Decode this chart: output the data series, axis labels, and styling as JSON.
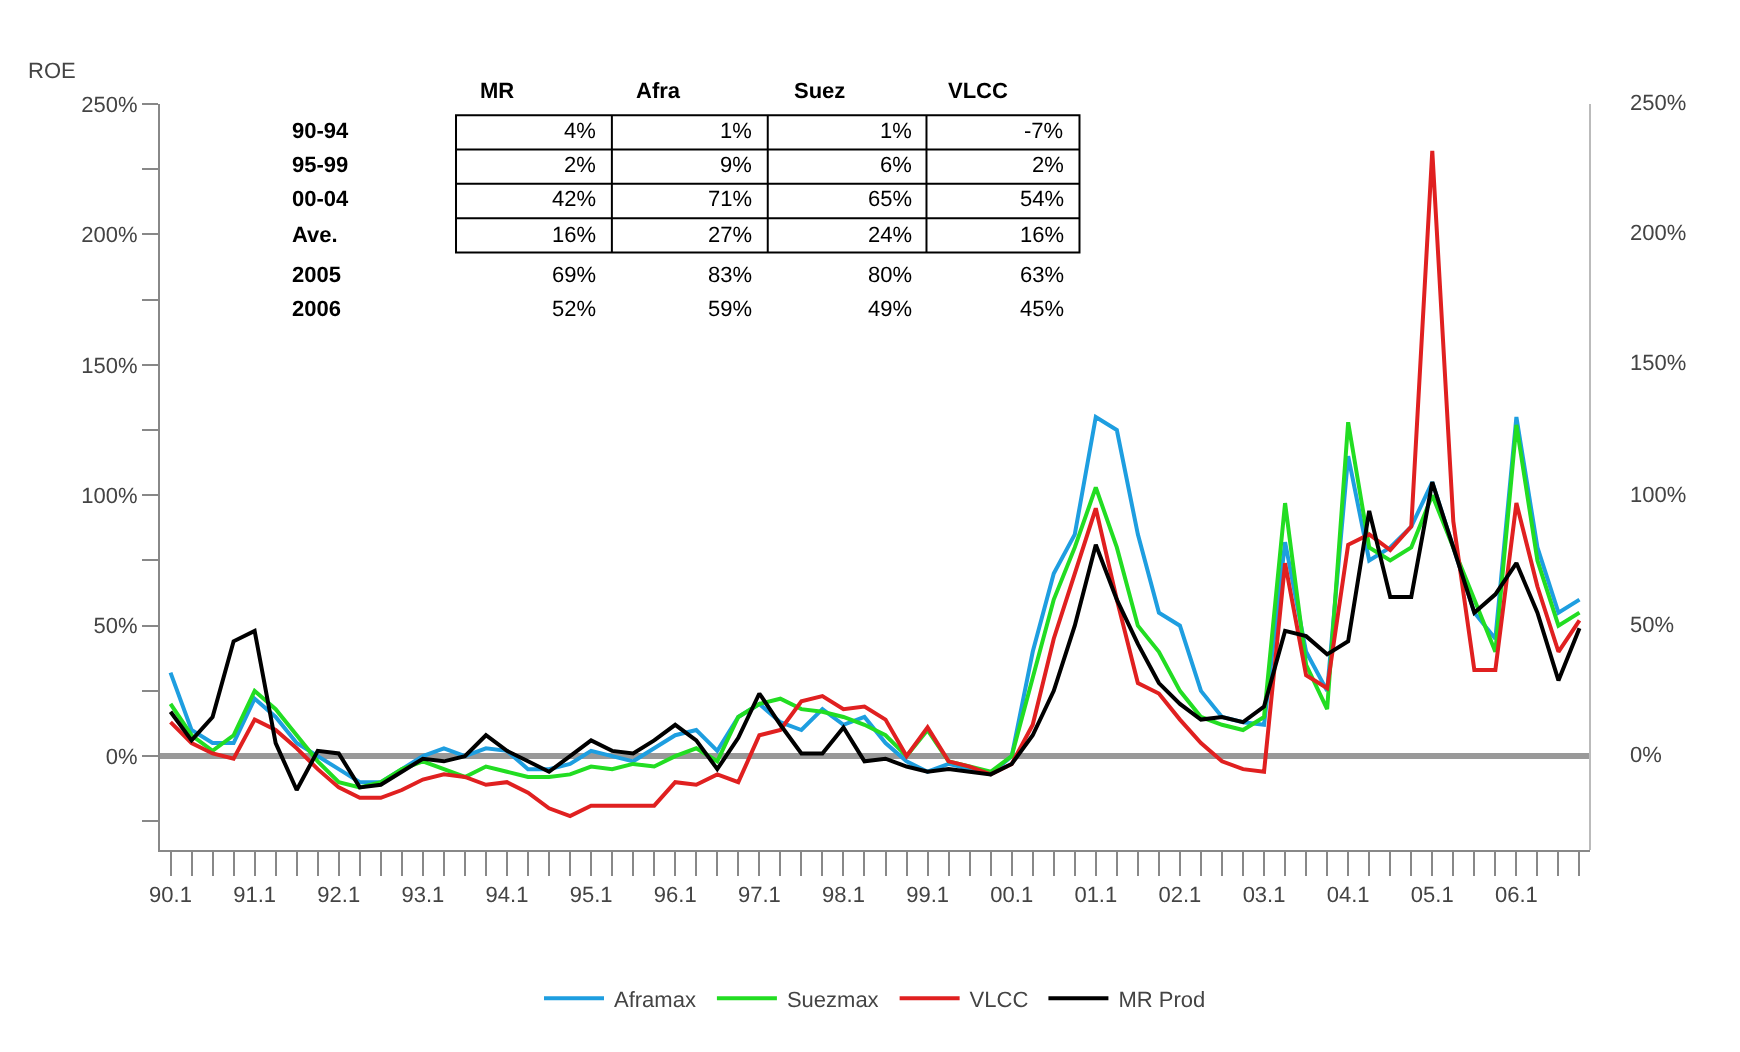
{
  "chart_data": {
    "type": "line",
    "ylabel": "ROE",
    "categories": [
      "90.1",
      null,
      null,
      null,
      "91.1",
      null,
      null,
      null,
      "92.1",
      null,
      null,
      null,
      "93.1",
      null,
      null,
      null,
      "94.1",
      null,
      null,
      null,
      "95.1",
      null,
      null,
      null,
      "96.1",
      null,
      null,
      null,
      "97.1",
      null,
      null,
      null,
      "98.1",
      null,
      null,
      null,
      "99.1",
      null,
      null,
      null,
      "00.1",
      null,
      null,
      null,
      "01.1",
      null,
      null,
      null,
      "02.1",
      null,
      null,
      null,
      "03.1",
      null,
      null,
      null,
      "04.1",
      null,
      null,
      null,
      "05.1",
      null,
      null,
      null,
      "06.1",
      null,
      null,
      null
    ],
    "series": [
      {
        "name": "Aframax",
        "color": "#1e9ee0",
        "values": [
          32,
          10,
          5,
          5,
          22,
          15,
          5,
          0,
          -5,
          -10,
          -10,
          -5,
          0,
          3,
          0,
          3,
          2,
          -5,
          -5,
          -3,
          2,
          0,
          -2,
          3,
          8,
          10,
          2,
          15,
          20,
          13,
          10,
          18,
          12,
          15,
          5,
          -2,
          -6,
          -3,
          -5,
          -7,
          0,
          40,
          70,
          85,
          130,
          125,
          85,
          55,
          50,
          25,
          15,
          13,
          12,
          82,
          40,
          25,
          115,
          75,
          80,
          88,
          105,
          80,
          55,
          45,
          130,
          80,
          55,
          60
        ]
      },
      {
        "name": "Suezmax",
        "color": "#22dd22",
        "values": [
          20,
          8,
          2,
          8,
          25,
          18,
          8,
          -2,
          -10,
          -12,
          -10,
          -5,
          -2,
          -5,
          -8,
          -4,
          -6,
          -8,
          -8,
          -7,
          -4,
          -5,
          -3,
          -4,
          0,
          3,
          -2,
          15,
          20,
          22,
          18,
          17,
          15,
          12,
          8,
          0,
          10,
          -2,
          -4,
          -6,
          0,
          30,
          60,
          80,
          103,
          80,
          50,
          40,
          25,
          15,
          12,
          10,
          15,
          97,
          35,
          18,
          128,
          80,
          75,
          80,
          100,
          80,
          60,
          40,
          127,
          75,
          50,
          55
        ]
      },
      {
        "name": "VLCC",
        "color": "#e02020",
        "values": [
          13,
          5,
          1,
          -1,
          14,
          10,
          3,
          -5,
          -12,
          -16,
          -16,
          -13,
          -9,
          -7,
          -8,
          -11,
          -10,
          -14,
          -20,
          -23,
          -19,
          -19,
          -19,
          -19,
          -10,
          -11,
          -7,
          -10,
          8,
          10,
          21,
          23,
          18,
          19,
          14,
          0,
          11,
          -2,
          -4,
          -7,
          -3,
          12,
          45,
          70,
          95,
          60,
          28,
          24,
          14,
          5,
          -2,
          -5,
          -6,
          74,
          31,
          26,
          81,
          85,
          79,
          88,
          232,
          90,
          33,
          33,
          97,
          65,
          40,
          52
        ]
      },
      {
        "name": "MR Prod",
        "color": "#000000",
        "values": [
          17,
          6,
          15,
          44,
          48,
          5,
          -13,
          2,
          1,
          -12,
          -11,
          -6,
          -1,
          -2,
          0,
          8,
          2,
          -2,
          -6,
          0,
          6,
          2,
          1,
          6,
          12,
          6,
          -5,
          7,
          24,
          12,
          1,
          1,
          11,
          -2,
          -1,
          -4,
          -6,
          -5,
          -6,
          -7,
          -3,
          8,
          25,
          50,
          81,
          60,
          43,
          28,
          20,
          14,
          15,
          13,
          19,
          48,
          46,
          39,
          44,
          94,
          61,
          61,
          105,
          80,
          55,
          62,
          74,
          55,
          29,
          49
        ]
      }
    ],
    "ylim": [
      -36,
      250
    ],
    "yticks": [
      {
        "value": -25,
        "label": null
      },
      {
        "value": 0,
        "label": "0%"
      },
      {
        "value": 25,
        "label": null
      },
      {
        "value": 50,
        "label": "50%"
      },
      {
        "value": 75,
        "label": null
      },
      {
        "value": 100,
        "label": "100%"
      },
      {
        "value": 125,
        "label": null
      },
      {
        "value": 150,
        "label": "150%"
      },
      {
        "value": 175,
        "label": null
      },
      {
        "value": 200,
        "label": "200%"
      },
      {
        "value": 225,
        "label": null
      },
      {
        "value": 250,
        "label": "250%"
      }
    ],
    "y2lim": [
      -36,
      250
    ],
    "y2ticks": [
      {
        "value": 0,
        "label": "0%"
      },
      {
        "value": 50,
        "label": "50%"
      },
      {
        "value": 100,
        "label": "100%"
      },
      {
        "value": 150,
        "label": "150%"
      },
      {
        "value": 200,
        "label": "200%"
      },
      {
        "value": 250,
        "label": "250%"
      }
    ],
    "ref_lines": [
      {
        "axis": "y",
        "value": 0,
        "color": "#999999"
      }
    ],
    "annotations": [
      "MR",
      "Afra",
      "Suez",
      "VLCC",
      "90-94",
      "4%",
      "1%",
      "1%",
      "-7%",
      "95-99",
      "2%",
      "9%",
      "6%",
      "2%",
      "00-04",
      "42%",
      "71%",
      "65%",
      "54%",
      "Ave.",
      "16%",
      "27%",
      "24%",
      "16%",
      "2005",
      "69%",
      "83%",
      "80%",
      "63%",
      "2006",
      "52%",
      "59%",
      "49%",
      "45%"
    ],
    "grid": false,
    "legend": "bottom",
    "marker": "none",
    "line_style": "solid"
  }
}
